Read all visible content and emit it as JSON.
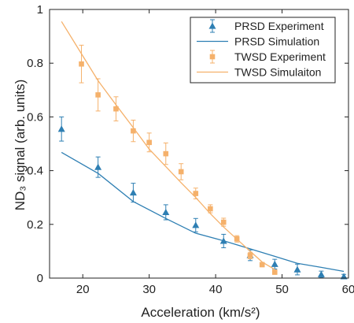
{
  "chart_data": {
    "type": "scatter",
    "xlabel": "Acceleration (km/s²)",
    "ylabel": "ND₃ signal (arb. units)",
    "xlim": [
      15,
      60
    ],
    "ylim": [
      0,
      1
    ],
    "xticks": [
      20,
      30,
      40,
      50,
      60
    ],
    "yticks": [
      0,
      0.2,
      0.4,
      0.6,
      0.8,
      1
    ],
    "xtick_labels": [
      "20",
      "30",
      "40",
      "50",
      "60"
    ],
    "ytick_labels": [
      "0",
      "0.2",
      "0.4",
      "0.6",
      "0.8",
      "1"
    ],
    "grid": false,
    "legend_position": "top-right",
    "colors": {
      "prsd": "#2e7fb3",
      "twsd": "#f5b16b",
      "axis": "#222222"
    },
    "series": [
      {
        "name": "PRSD Experiment",
        "kind": "points",
        "marker": "triangle",
        "color": "#2e7fb3",
        "x": [
          16.8,
          22.3,
          27.6,
          32.5,
          37.0,
          41.2,
          45.2,
          48.9,
          52.3,
          55.9,
          59.3
        ],
        "y": [
          0.555,
          0.413,
          0.318,
          0.245,
          0.197,
          0.138,
          0.085,
          0.052,
          0.032,
          0.014,
          0.006
        ],
        "err": [
          0.045,
          0.038,
          0.035,
          0.028,
          0.025,
          0.025,
          0.02,
          0.018,
          0.02,
          0.012,
          0.008
        ]
      },
      {
        "name": "PRSD Simulation",
        "kind": "line",
        "color": "#2e7fb3",
        "x": [
          16.8,
          22.3,
          27.6,
          32.5,
          37.0,
          41.2,
          45.2,
          48.9,
          52.3,
          55.9,
          59.3
        ],
        "y": [
          0.468,
          0.39,
          0.285,
          0.222,
          0.167,
          0.139,
          0.109,
          0.081,
          0.055,
          0.04,
          0.025
        ]
      },
      {
        "name": "TWSD Experiment",
        "kind": "points",
        "marker": "square",
        "color": "#f5b16b",
        "x": [
          19.8,
          22.3,
          25.0,
          27.6,
          30.0,
          32.5,
          34.8,
          37.0,
          39.2,
          41.2,
          43.2,
          45.2,
          47.0,
          48.9
        ],
        "y": [
          0.797,
          0.682,
          0.63,
          0.548,
          0.505,
          0.463,
          0.396,
          0.315,
          0.258,
          0.208,
          0.146,
          0.084,
          0.05,
          0.022
        ],
        "err": [
          0.07,
          0.06,
          0.045,
          0.04,
          0.035,
          0.04,
          0.03,
          0.02,
          0.015,
          0.015,
          0.012,
          0.012,
          0.008,
          0.008
        ]
      },
      {
        "name": "TWSD Simulaiton",
        "kind": "line",
        "color": "#f5b16b",
        "x": [
          16.8,
          19.8,
          22.3,
          25.0,
          27.6,
          30.0,
          32.5,
          34.8,
          37.0,
          39.2,
          41.2,
          43.2,
          45.2,
          47.0,
          48.9
        ],
        "y": [
          0.955,
          0.835,
          0.735,
          0.645,
          0.56,
          0.48,
          0.415,
          0.355,
          0.3,
          0.24,
          0.19,
          0.145,
          0.1,
          0.06,
          0.032
        ]
      }
    ]
  }
}
